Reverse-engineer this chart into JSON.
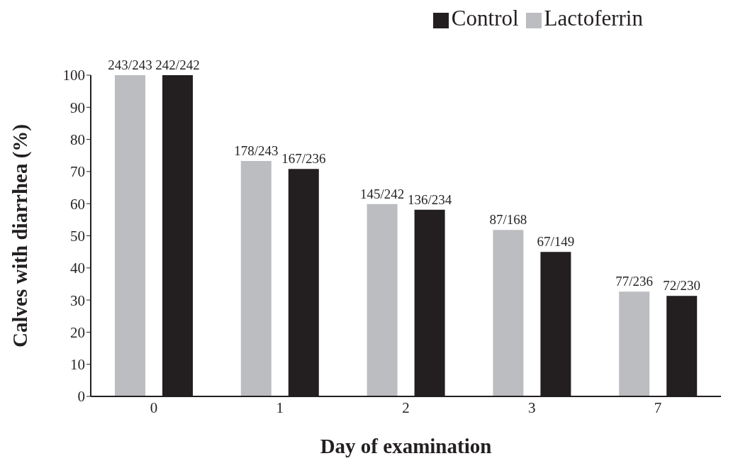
{
  "chart_data": {
    "type": "bar",
    "xlabel": "Day of examination",
    "ylabel": "Calves with diarrhea (%)",
    "categories": [
      "0",
      "1",
      "2",
      "3",
      "7"
    ],
    "series": [
      {
        "name": "Lactoferrin",
        "color": "#bcbdc0",
        "values": [
          100,
          73.3,
          59.9,
          51.8,
          32.6
        ],
        "value_labels": [
          "243/243",
          "178/243",
          "145/242",
          "87/168",
          "77/236"
        ]
      },
      {
        "name": "Control",
        "color": "#231f20",
        "values": [
          100,
          70.8,
          58.1,
          45.0,
          31.3
        ],
        "value_labels": [
          "242/242",
          "167/236",
          "136/234",
          "67/149",
          "72/230"
        ]
      }
    ],
    "ylim": [
      0,
      100
    ],
    "yticks": [
      0,
      10,
      20,
      30,
      40,
      50,
      60,
      70,
      80,
      90,
      100
    ],
    "grid": false,
    "legend": "top right"
  }
}
